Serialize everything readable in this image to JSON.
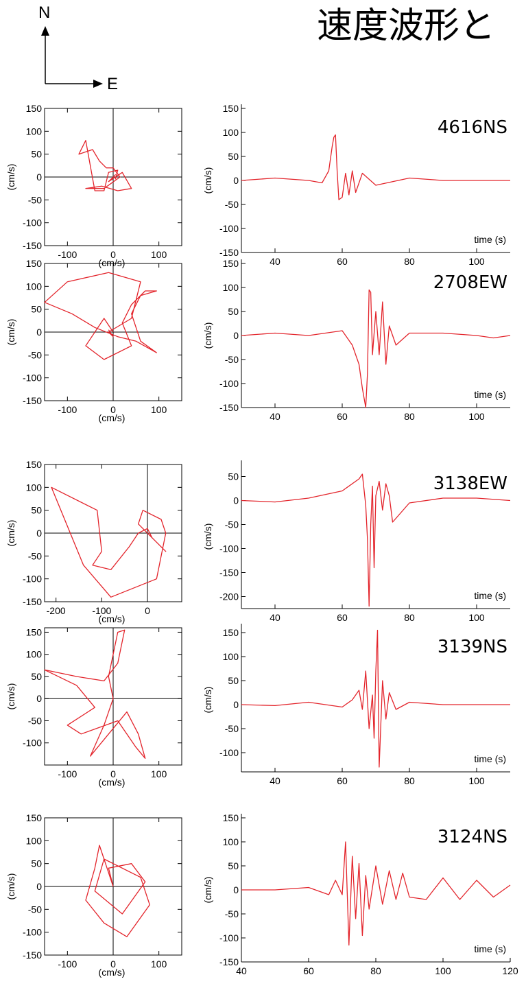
{
  "page": {
    "title": "速度波形と"
  },
  "compass": {
    "north": "N",
    "east": "E"
  },
  "colors": {
    "trace": "#e3242b",
    "axis": "#000000"
  },
  "chart_data": [
    {
      "type": "scatter",
      "subtype": "particle-motion",
      "station": "4616",
      "xlabel": "(cm/s)",
      "ylabel": "(cm/s)",
      "xlim": [
        -150,
        150
      ],
      "ylim": [
        -150,
        150
      ],
      "xticks": [
        -100,
        0,
        100
      ],
      "yticks": [
        -150,
        -100,
        -50,
        0,
        50,
        100,
        150
      ],
      "path": [
        [
          5,
          -5
        ],
        [
          10,
          15
        ],
        [
          -10,
          10
        ],
        [
          -20,
          -30
        ],
        [
          -40,
          -30
        ],
        [
          -60,
          80
        ],
        [
          -75,
          50
        ],
        [
          -45,
          60
        ],
        [
          -30,
          35
        ],
        [
          -15,
          20
        ],
        [
          0,
          20
        ],
        [
          15,
          0
        ],
        [
          -20,
          -25
        ],
        [
          -60,
          -25
        ],
        [
          -25,
          -20
        ],
        [
          10,
          -30
        ],
        [
          40,
          -25
        ],
        [
          20,
          10
        ],
        [
          -10,
          -10
        ],
        [
          5,
          5
        ],
        [
          0,
          0
        ]
      ]
    },
    {
      "type": "line",
      "station": "4616",
      "component": "NS",
      "label": "4616NS",
      "xlabel": "time (s)",
      "ylabel": "(cm/s)",
      "xlim": [
        30,
        110
      ],
      "ylim": [
        -150,
        150
      ],
      "xticks": [
        40,
        60,
        80,
        100
      ],
      "yticks": [
        -150,
        -100,
        -50,
        0,
        50,
        100,
        150
      ],
      "x": [
        30,
        40,
        50,
        54,
        56,
        57,
        57.5,
        58,
        58.5,
        59,
        60,
        61,
        62,
        63,
        64,
        66,
        70,
        80,
        90,
        100,
        110
      ],
      "y": [
        0,
        5,
        0,
        -5,
        20,
        70,
        90,
        95,
        20,
        -40,
        -35,
        15,
        -30,
        20,
        -25,
        15,
        -10,
        5,
        0,
        0,
        0
      ]
    },
    {
      "type": "scatter",
      "subtype": "particle-motion",
      "station": "2708",
      "xlabel": "(cm/s)",
      "ylabel": "(cm/s)",
      "xlim": [
        -150,
        150
      ],
      "ylim": [
        -150,
        150
      ],
      "xticks": [
        -100,
        0,
        100
      ],
      "yticks": [
        -150,
        -100,
        -50,
        0,
        50,
        100,
        150
      ],
      "path": [
        [
          0,
          0
        ],
        [
          -20,
          30
        ],
        [
          -60,
          -30
        ],
        [
          -20,
          -60
        ],
        [
          40,
          -30
        ],
        [
          20,
          20
        ],
        [
          40,
          60
        ],
        [
          70,
          90
        ],
        [
          95,
          90
        ],
        [
          60,
          80
        ],
        [
          40,
          40
        ],
        [
          60,
          -20
        ],
        [
          95,
          -45
        ],
        [
          50,
          -20
        ],
        [
          10,
          -10
        ],
        [
          -40,
          10
        ],
        [
          -90,
          40
        ],
        [
          -150,
          65
        ],
        [
          -100,
          110
        ],
        [
          -10,
          130
        ],
        [
          60,
          110
        ],
        [
          40,
          30
        ],
        [
          -10,
          0
        ],
        [
          0,
          -10
        ],
        [
          -10,
          5
        ]
      ]
    },
    {
      "type": "line",
      "station": "2708",
      "component": "EW",
      "label": "2708EW",
      "xlabel": "time (s)",
      "ylabel": "(cm/s)",
      "xlim": [
        30,
        110
      ],
      "ylim": [
        -150,
        150
      ],
      "xticks": [
        40,
        60,
        80,
        100
      ],
      "yticks": [
        -150,
        -100,
        -50,
        0,
        50,
        100,
        150
      ],
      "x": [
        30,
        40,
        50,
        60,
        63,
        65,
        66,
        67,
        67.5,
        68,
        68.5,
        69,
        70,
        71,
        72,
        73,
        74,
        76,
        80,
        90,
        100,
        105,
        110
      ],
      "y": [
        0,
        5,
        0,
        10,
        -20,
        -60,
        -110,
        -150,
        -80,
        95,
        90,
        -40,
        50,
        -40,
        70,
        -60,
        20,
        -20,
        5,
        5,
        0,
        -5,
        0
      ]
    },
    {
      "type": "scatter",
      "subtype": "particle-motion",
      "station": "3138",
      "xlabel": "(cm/s)",
      "ylabel": "(cm/s)",
      "xlim": [
        -225,
        75
      ],
      "ylim": [
        -150,
        150
      ],
      "xticks": [
        -200,
        -100,
        0
      ],
      "yticks": [
        -150,
        -100,
        -50,
        0,
        50,
        100,
        150
      ],
      "path": [
        [
          0,
          0
        ],
        [
          -20,
          20
        ],
        [
          -10,
          50
        ],
        [
          30,
          30
        ],
        [
          40,
          0
        ],
        [
          20,
          -100
        ],
        [
          -80,
          -140
        ],
        [
          -140,
          -70
        ],
        [
          -210,
          100
        ],
        [
          -110,
          50
        ],
        [
          -100,
          -40
        ],
        [
          -120,
          -70
        ],
        [
          -80,
          -80
        ],
        [
          -40,
          -30
        ],
        [
          -20,
          0
        ],
        [
          0,
          10
        ],
        [
          10,
          -10
        ],
        [
          40,
          -40
        ],
        [
          0,
          0
        ]
      ]
    },
    {
      "type": "line",
      "station": "3138",
      "component": "EW",
      "label": "3138EW",
      "xlabel": "time (s)",
      "ylabel": "(cm/s)",
      "xlim": [
        30,
        110
      ],
      "ylim": [
        -225,
        75
      ],
      "xticks": [
        40,
        60,
        80,
        100
      ],
      "yticks": [
        -200,
        -150,
        -100,
        -50,
        0,
        50
      ],
      "x": [
        30,
        40,
        50,
        60,
        65,
        66,
        67,
        67.5,
        68,
        68.5,
        69,
        69.5,
        70,
        71,
        72,
        73,
        74,
        75,
        80,
        90,
        100,
        110
      ],
      "y": [
        0,
        -3,
        5,
        20,
        45,
        55,
        -10,
        -80,
        -220,
        -50,
        30,
        -140,
        10,
        40,
        -20,
        35,
        10,
        -45,
        -5,
        5,
        5,
        0
      ]
    },
    {
      "type": "scatter",
      "subtype": "particle-motion",
      "station": "3139",
      "xlabel": "(cm/s)",
      "ylabel": "(cm/s)",
      "xlim": [
        -150,
        150
      ],
      "ylim": [
        -150,
        160
      ],
      "xticks": [
        -100,
        0,
        100
      ],
      "yticks": [
        -100,
        -50,
        0,
        50,
        100,
        150
      ],
      "path": [
        [
          0,
          0
        ],
        [
          -10,
          50
        ],
        [
          10,
          150
        ],
        [
          25,
          155
        ],
        [
          10,
          80
        ],
        [
          -20,
          40
        ],
        [
          -80,
          50
        ],
        [
          -150,
          65
        ],
        [
          -80,
          30
        ],
        [
          -40,
          -20
        ],
        [
          -100,
          -60
        ],
        [
          -70,
          -80
        ],
        [
          10,
          -50
        ],
        [
          50,
          -110
        ],
        [
          70,
          -135
        ],
        [
          55,
          -80
        ],
        [
          30,
          -30
        ],
        [
          -50,
          -130
        ],
        [
          -20,
          -60
        ],
        [
          0,
          0
        ]
      ]
    },
    {
      "type": "line",
      "station": "3139",
      "component": "NS",
      "label": "3139NS",
      "xlabel": "time (s)",
      "ylabel": "(cm/s)",
      "xlim": [
        30,
        110
      ],
      "ylim": [
        -140,
        160
      ],
      "xticks": [
        40,
        60,
        80,
        100
      ],
      "yticks": [
        -100,
        -50,
        0,
        50,
        100,
        150
      ],
      "x": [
        30,
        40,
        50,
        60,
        63,
        65,
        66,
        67,
        68,
        69,
        69.5,
        70,
        70.5,
        71,
        72,
        73,
        74,
        76,
        80,
        90,
        100,
        110
      ],
      "y": [
        0,
        -2,
        5,
        -5,
        10,
        30,
        -10,
        70,
        -50,
        20,
        -70,
        70,
        155,
        -130,
        50,
        -30,
        25,
        -10,
        5,
        0,
        0,
        0
      ]
    },
    {
      "type": "scatter",
      "subtype": "particle-motion",
      "station": "3124",
      "xlabel": "(cm/s)",
      "ylabel": "(cm/s)",
      "xlim": [
        -150,
        150
      ],
      "ylim": [
        -150,
        150
      ],
      "xticks": [
        -100,
        0,
        100
      ],
      "yticks": [
        -150,
        -100,
        -50,
        0,
        50,
        100,
        150
      ],
      "path": [
        [
          0,
          0
        ],
        [
          -30,
          90
        ],
        [
          -40,
          40
        ],
        [
          -60,
          -30
        ],
        [
          -20,
          -80
        ],
        [
          30,
          -110
        ],
        [
          80,
          -40
        ],
        [
          60,
          20
        ],
        [
          -20,
          60
        ],
        [
          -40,
          -10
        ],
        [
          20,
          -60
        ],
        [
          70,
          10
        ],
        [
          40,
          50
        ],
        [
          -10,
          40
        ],
        [
          0,
          0
        ]
      ]
    },
    {
      "type": "line",
      "station": "3124",
      "component": "NS",
      "label": "3124NS",
      "xlabel": "time (s)",
      "ylabel": "(cm/s)",
      "xlim": [
        40,
        120
      ],
      "ylim": [
        -150,
        150
      ],
      "xticks": [
        40,
        60,
        80,
        100,
        120
      ],
      "yticks": [
        -150,
        -100,
        -50,
        0,
        50,
        100,
        150
      ],
      "x": [
        40,
        50,
        60,
        66,
        68,
        70,
        71,
        72,
        73,
        74,
        75,
        76,
        77,
        78,
        80,
        82,
        84,
        86,
        88,
        90,
        95,
        100,
        105,
        110,
        115,
        120
      ],
      "y": [
        0,
        0,
        5,
        -10,
        20,
        -10,
        100,
        -115,
        70,
        -60,
        55,
        -95,
        30,
        -40,
        50,
        -30,
        40,
        -20,
        35,
        -15,
        -20,
        25,
        -20,
        20,
        -15,
        10
      ]
    }
  ]
}
